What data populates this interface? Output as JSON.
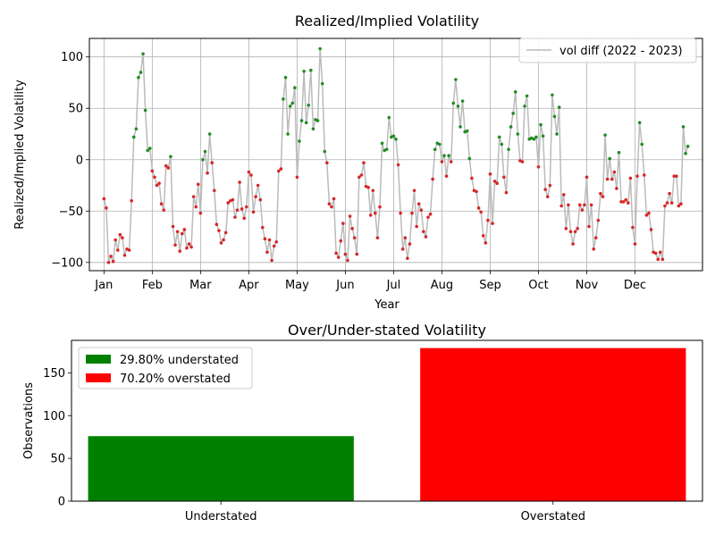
{
  "chart_data": [
    {
      "type": "line",
      "title": "Realized/Implied Volatility",
      "xlabel": "Year",
      "ylabel": "Realized/Implied Volatility",
      "x_ticks": [
        "Jan",
        "Feb",
        "Mar",
        "Apr",
        "May",
        "Jun",
        "Jul",
        "Aug",
        "Sep",
        "Oct",
        "Nov",
        "Dec"
      ],
      "ylim": [
        -108,
        118
      ],
      "y_ticks": [
        -100,
        -50,
        0,
        50,
        100
      ],
      "grid": true,
      "legend": "upper right",
      "series": [
        {
          "name": "vol diff (2022 - 2023)",
          "color": "#bbbbbb",
          "positive_color": "#228b22",
          "negative_color": "#d62728",
          "values": [
            -38,
            -47,
            -100,
            -94,
            -99,
            -78,
            -88,
            -73,
            -76,
            -93,
            -87,
            -88,
            -40,
            22,
            30,
            80,
            85,
            103,
            48,
            9,
            11,
            -11,
            -17,
            -25,
            -23,
            -43,
            -49,
            -6,
            -8,
            3,
            -65,
            -83,
            -70,
            -89,
            -72,
            -68,
            -86,
            -82,
            -85,
            -36,
            -46,
            -24,
            -52,
            0,
            8,
            -13,
            25,
            -3,
            -30,
            -63,
            -69,
            -81,
            -78,
            -71,
            -42,
            -40,
            -39,
            -56,
            -49,
            -22,
            -48,
            -57,
            -46,
            -12,
            -15,
            -51,
            -36,
            -25,
            -39,
            -66,
            -77,
            -90,
            -78,
            -98,
            -84,
            -80,
            -11,
            -9,
            59,
            80,
            25,
            52,
            55,
            70,
            -17,
            18,
            38,
            86,
            36,
            53,
            87,
            30,
            39,
            38,
            108,
            74,
            8,
            -3,
            -43,
            -46,
            -38,
            -91,
            -95,
            -79,
            -62,
            -92,
            -98,
            -55,
            -67,
            -76,
            -92,
            -17,
            -15,
            -3,
            -26,
            -27,
            -54,
            -30,
            -52,
            -76,
            -46,
            16,
            9,
            10,
            41,
            22,
            23,
            20,
            -5,
            -52,
            -87,
            -76,
            -96,
            -82,
            -52,
            -30,
            -65,
            -43,
            -49,
            -70,
            -75,
            -56,
            -53,
            -19,
            10,
            16,
            15,
            -2,
            4,
            -16,
            4,
            -2,
            55,
            78,
            52,
            32,
            57,
            27,
            28,
            1,
            -18,
            -30,
            -31,
            -47,
            -51,
            -74,
            -81,
            -59,
            -14,
            -62,
            -21,
            -23,
            22,
            15,
            -17,
            -32,
            10,
            32,
            45,
            66,
            25,
            -1,
            -2,
            52,
            62,
            20,
            21,
            20,
            22,
            -7,
            34,
            23,
            -29,
            -36,
            -25,
            63,
            42,
            25,
            51,
            -45,
            -34,
            -67,
            -44,
            -70,
            -82,
            -70,
            -67,
            -44,
            -49,
            -44,
            -17,
            -65,
            -44,
            -87,
            -76,
            -59,
            -33,
            -36,
            24,
            -19,
            1,
            -19,
            -12,
            -28,
            7,
            -41,
            -41,
            -39,
            -42,
            -18,
            -66,
            -82,
            -16,
            36,
            15,
            -15,
            -54,
            -52,
            -68,
            -90,
            -91,
            -97,
            -90,
            -97,
            -45,
            -42,
            -33,
            -42,
            -16,
            -16,
            -45,
            -43,
            32,
            6,
            13
          ]
        }
      ]
    },
    {
      "type": "bar",
      "title": "Over/Under-stated Volatility",
      "xlabel": "",
      "ylabel": "Observations",
      "categories": [
        "Understated",
        "Overstated"
      ],
      "values": [
        76,
        179
      ],
      "colors": [
        "#008000",
        "#ff0000"
      ],
      "ylim": [
        0,
        188
      ],
      "y_ticks": [
        0,
        50,
        100,
        150
      ],
      "grid": false,
      "legend": "upper left",
      "legend_entries": [
        {
          "label": "29.80% understated",
          "color": "#008000"
        },
        {
          "label": "70.20% overstated",
          "color": "#ff0000"
        }
      ]
    }
  ]
}
